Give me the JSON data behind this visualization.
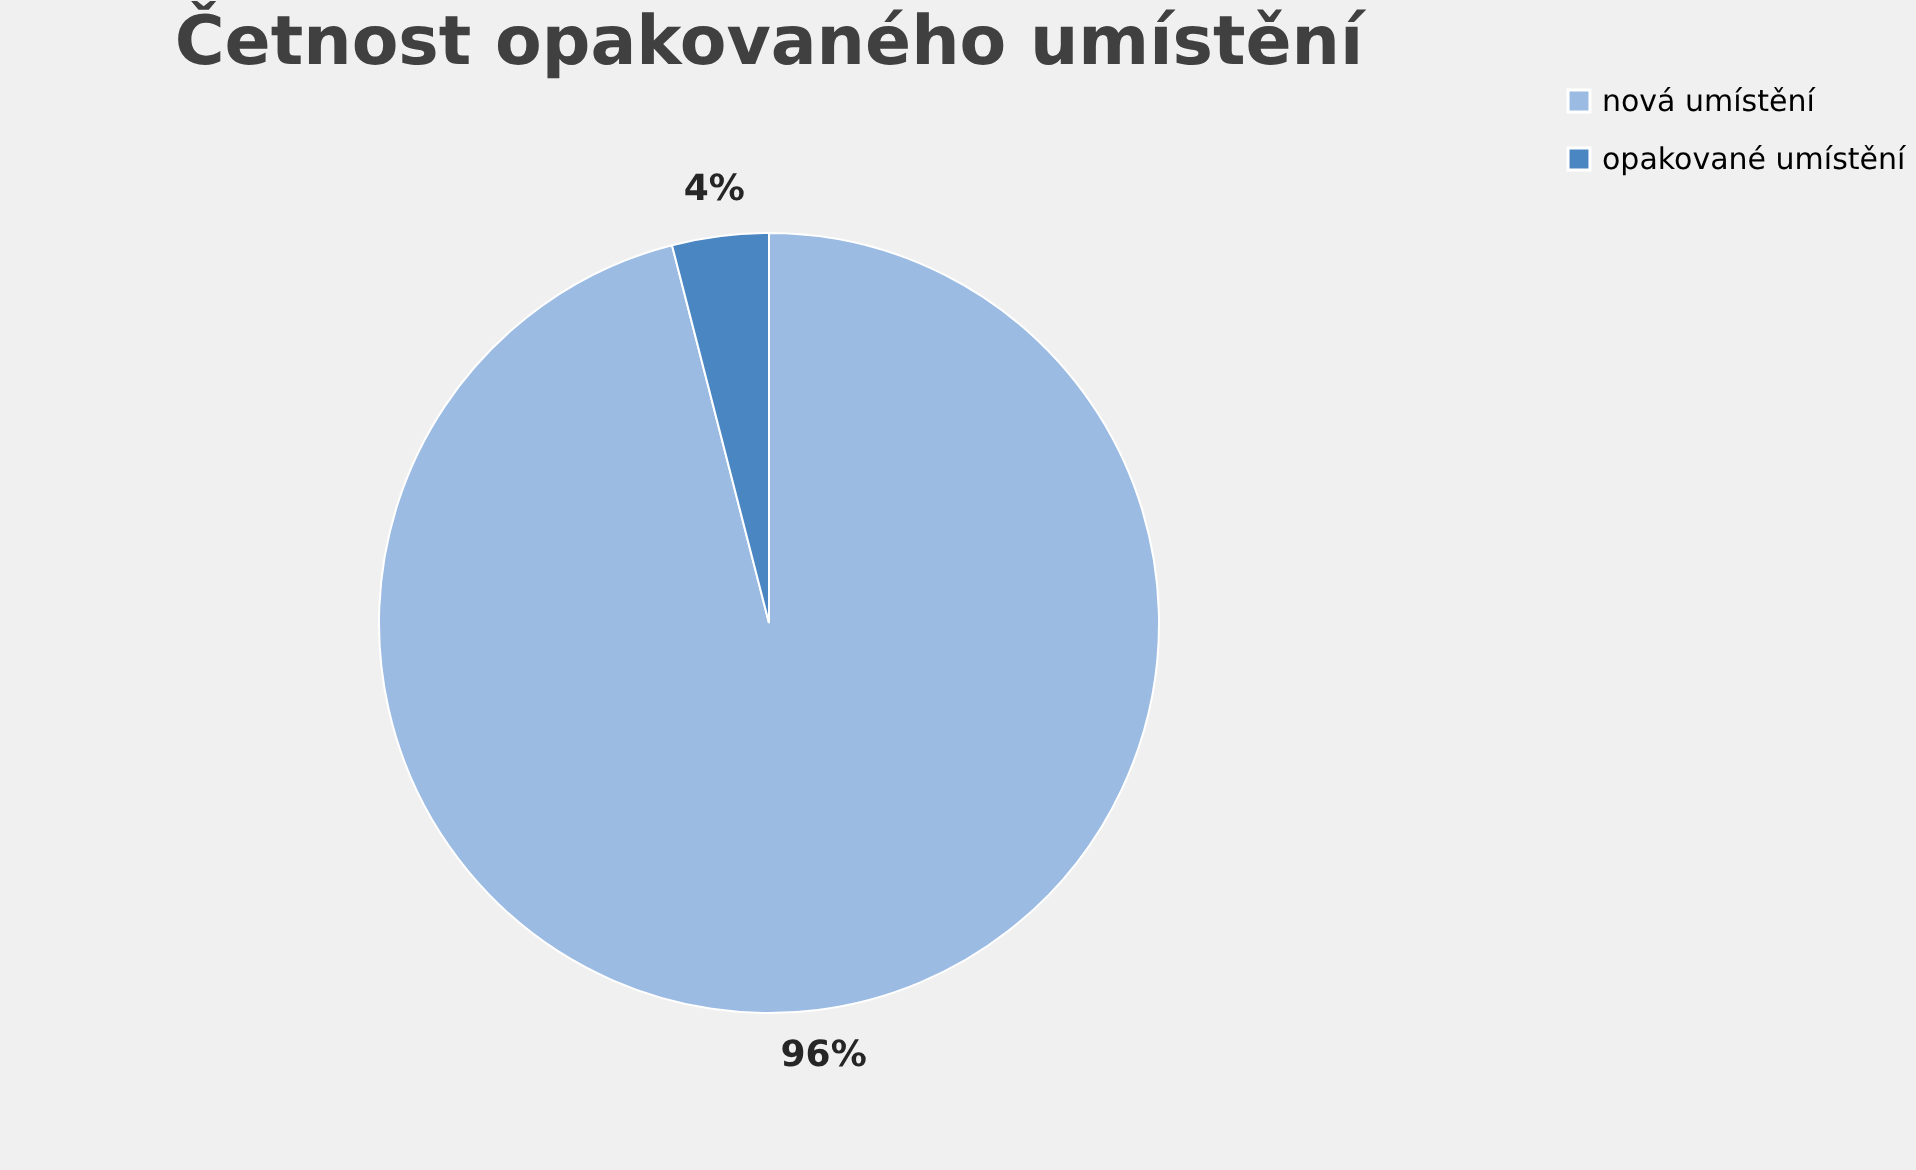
{
  "chart_data": {
    "type": "pie",
    "title": "Četnost opakovaného umístění",
    "categories": [
      "nová umístění",
      "opakované umístění"
    ],
    "values": [
      96,
      4
    ],
    "colors": [
      "#9bbbe3",
      "#4a86c2"
    ],
    "value_labels": [
      "96%",
      "4%"
    ],
    "legend": "right"
  }
}
